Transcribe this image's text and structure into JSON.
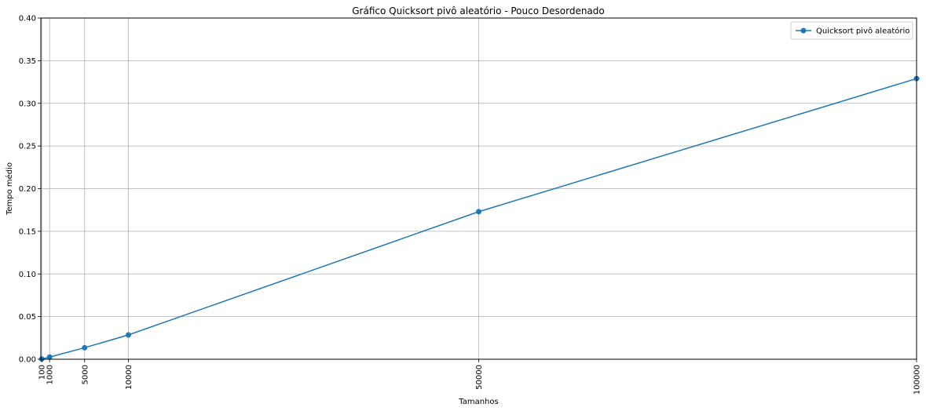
{
  "chart_data": {
    "type": "line",
    "title": "Gráfico Quicksort pivô aleatório - Pouco Desordenado",
    "xlabel": "Tamanhos",
    "ylabel": "Tempo médio",
    "x": [
      100,
      1000,
      5000,
      10000,
      50000,
      100000
    ],
    "x_tick_labels": [
      "100",
      "1000",
      "5000",
      "10000",
      "50000",
      "100000"
    ],
    "xlim": [
      0,
      100000
    ],
    "ylim": [
      0,
      0.4
    ],
    "y_ticks": [
      0.0,
      0.05,
      0.1,
      0.15,
      0.2,
      0.25,
      0.3,
      0.35,
      0.4
    ],
    "y_tick_labels": [
      "0.00",
      "0.05",
      "0.10",
      "0.15",
      "0.20",
      "0.25",
      "0.30",
      "0.35",
      "0.40"
    ],
    "grid": true,
    "legend_position": "top-right",
    "series": [
      {
        "name": "Quicksort pivô aleatório",
        "color": "#1f77b4",
        "marker": "circle",
        "values": [
          0.0003,
          0.0025,
          0.0135,
          0.0285,
          0.173,
          0.329
        ]
      }
    ]
  }
}
